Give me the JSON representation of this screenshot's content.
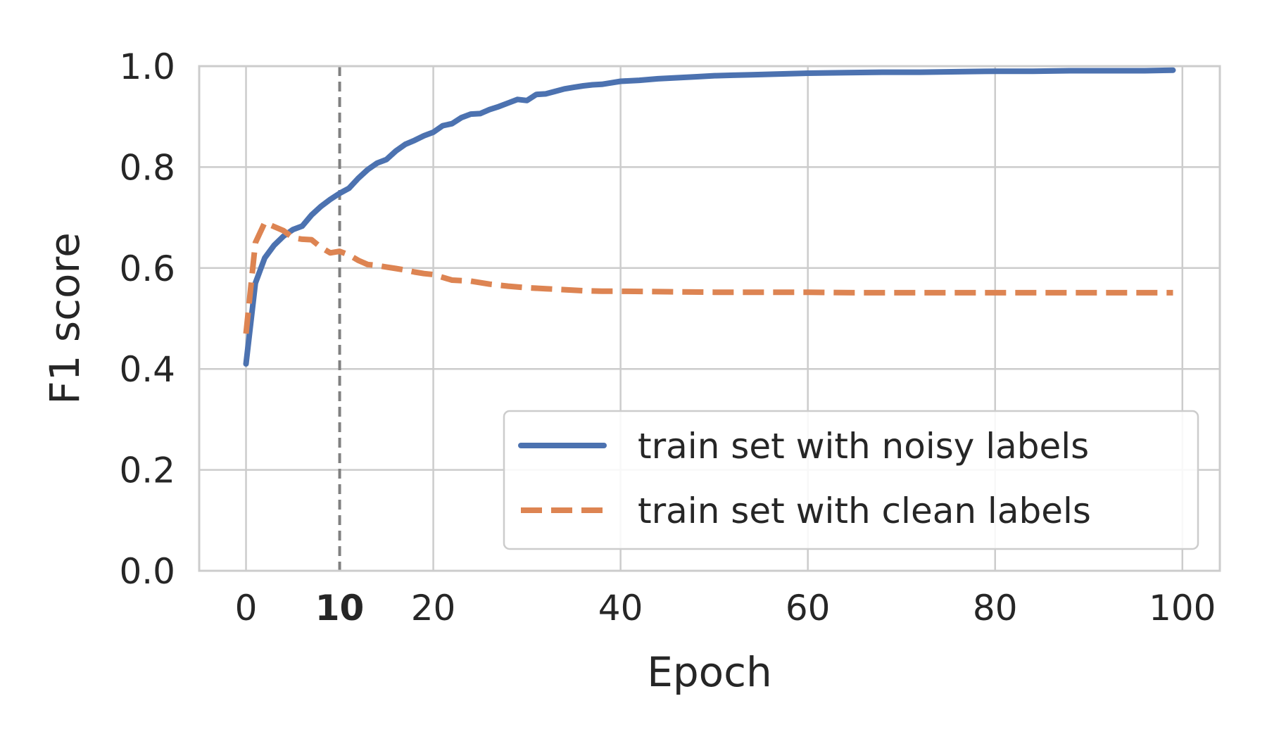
{
  "chart_data": {
    "type": "line",
    "xlabel": "Epoch",
    "ylabel": "F1 score",
    "xlim": [
      -5,
      104
    ],
    "ylim": [
      0.0,
      1.0
    ],
    "xticks": [
      "0",
      "10",
      "20",
      "40",
      "60",
      "80",
      "100"
    ],
    "xtick_values": [
      0,
      10,
      20,
      40,
      60,
      80,
      100
    ],
    "xtick_bold": [
      false,
      true,
      false,
      false,
      false,
      false,
      false
    ],
    "yticks": [
      "0.0",
      "0.2",
      "0.4",
      "0.6",
      "0.8",
      "1.0"
    ],
    "ytick_values": [
      0.0,
      0.2,
      0.4,
      0.6,
      0.8,
      1.0
    ],
    "grid": true,
    "vline": {
      "x": 10,
      "style": "dashed",
      "color": "#808080"
    },
    "legend": {
      "placement": "lower-right"
    },
    "series": [
      {
        "name": "train set with noisy labels",
        "style": "solid",
        "color": "#4c72b0",
        "x": [
          0,
          1,
          2,
          3,
          4,
          5,
          6,
          7,
          8,
          9,
          10,
          11,
          12,
          13,
          14,
          15,
          16,
          17,
          18,
          19,
          20,
          21,
          22,
          23,
          24,
          25,
          26,
          27,
          28,
          29,
          30,
          31,
          32,
          33,
          34,
          35,
          36,
          37,
          38,
          39,
          40,
          42,
          44,
          46,
          48,
          50,
          52,
          54,
          56,
          58,
          60,
          64,
          68,
          72,
          76,
          80,
          84,
          88,
          92,
          96,
          99
        ],
        "y": [
          0.41,
          0.57,
          0.62,
          0.645,
          0.663,
          0.676,
          0.683,
          0.705,
          0.722,
          0.736,
          0.748,
          0.758,
          0.778,
          0.795,
          0.808,
          0.815,
          0.832,
          0.845,
          0.853,
          0.862,
          0.869,
          0.882,
          0.886,
          0.898,
          0.905,
          0.906,
          0.914,
          0.92,
          0.927,
          0.934,
          0.932,
          0.944,
          0.945,
          0.95,
          0.955,
          0.958,
          0.961,
          0.963,
          0.964,
          0.967,
          0.97,
          0.972,
          0.975,
          0.977,
          0.979,
          0.981,
          0.982,
          0.983,
          0.984,
          0.985,
          0.986,
          0.987,
          0.988,
          0.988,
          0.989,
          0.99,
          0.99,
          0.991,
          0.991,
          0.991,
          0.992
        ]
      },
      {
        "name": "train set with clean labels",
        "style": "dashed",
        "color": "#dd8452",
        "x": [
          0,
          1,
          2,
          3,
          4,
          5,
          6,
          7,
          8,
          9,
          10,
          11,
          12,
          13,
          14,
          15,
          16,
          17,
          18,
          19,
          20,
          22,
          24,
          26,
          28,
          30,
          32,
          34,
          36,
          38,
          40,
          45,
          50,
          55,
          60,
          65,
          70,
          75,
          80,
          85,
          90,
          95,
          99
        ],
        "y": [
          0.47,
          0.65,
          0.69,
          0.682,
          0.674,
          0.66,
          0.657,
          0.656,
          0.641,
          0.63,
          0.633,
          0.626,
          0.615,
          0.607,
          0.605,
          0.602,
          0.599,
          0.596,
          0.592,
          0.589,
          0.587,
          0.576,
          0.574,
          0.568,
          0.564,
          0.561,
          0.559,
          0.557,
          0.555,
          0.554,
          0.554,
          0.553,
          0.552,
          0.552,
          0.552,
          0.551,
          0.551,
          0.551,
          0.551,
          0.551,
          0.551,
          0.551,
          0.551
        ]
      }
    ]
  }
}
